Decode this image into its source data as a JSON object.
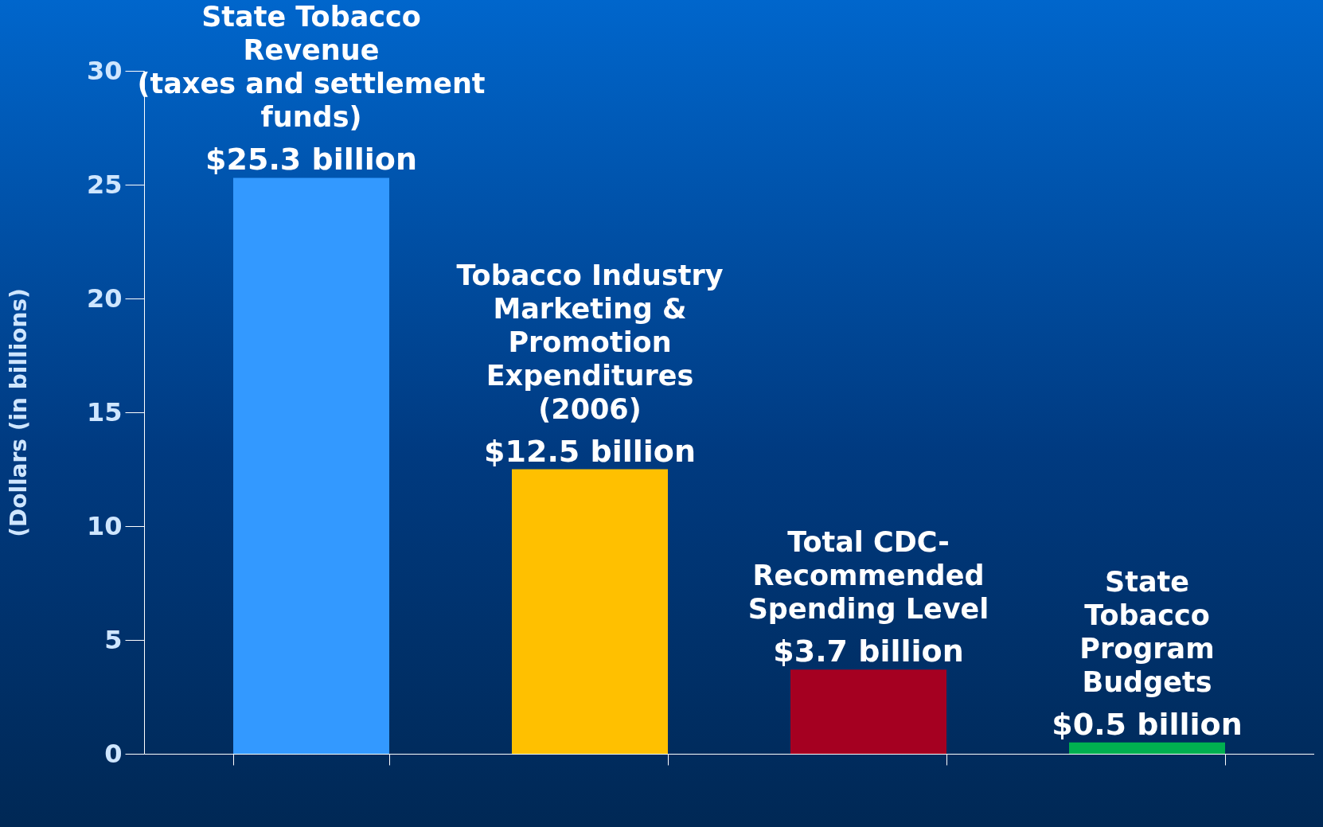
{
  "chart_data": {
    "type": "bar",
    "ylabel": "(Dollars (in billions)",
    "categories": [
      "State Tobacco\nRevenue\n(taxes and settlement\nfunds)",
      "Tobacco Industry\nMarketing &\nPromotion\nExpenditures\n(2006)",
      "Total CDC-\nRecommended\nSpending Level",
      "State\nTobacco\nProgram\nBudgets"
    ],
    "values": [
      25.3,
      12.5,
      3.7,
      0.5
    ],
    "colors": [
      "#3399ff",
      "#ffc000",
      "#a50021",
      "#00b050"
    ],
    "value_labels": [
      "$25.3 billion",
      "$12.5 billion",
      "$3.7 billion",
      "$0.5 billion"
    ],
    "ylim": [
      0,
      30
    ],
    "yticks": [
      0,
      5,
      10,
      15,
      20,
      25,
      30
    ],
    "grid": false,
    "legend": false
  }
}
